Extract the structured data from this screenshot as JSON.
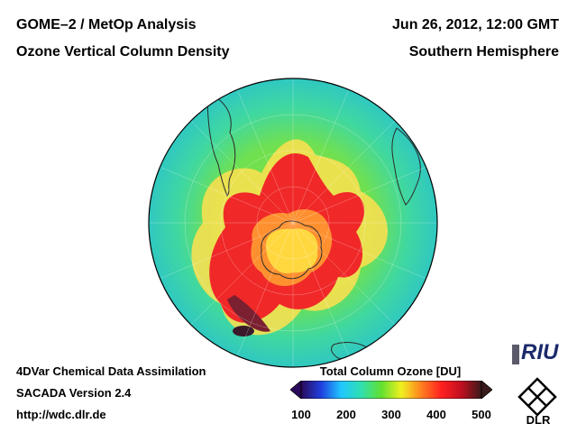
{
  "header": {
    "title_line1": "GOME–2 / MetOp Analysis",
    "title_line2": "Ozone Vertical Column Density",
    "date": "Jun 26, 2012, 12:00 GMT",
    "hemisphere": "Southern Hemisphere"
  },
  "footer": {
    "line1": "4DVar Chemical Data Assimilation",
    "line2": "SACADA Version 2.4",
    "line3": "http://wdc.dlr.de"
  },
  "colorbar": {
    "title": "Total Column Ozone [DU]",
    "ticks": [
      "100",
      "200",
      "300",
      "400",
      "500"
    ],
    "min": 100,
    "max": 500,
    "colors": [
      "#2a0a5a",
      "#2040e0",
      "#20c8ff",
      "#30e0b0",
      "#60e030",
      "#f0f020",
      "#ff8020",
      "#ff2020",
      "#c01020",
      "#3a1a1a"
    ]
  },
  "logos": {
    "riu": "RIU",
    "dlr": "DLR"
  },
  "map": {
    "projection": "orthographic south polar",
    "background_color": "#40d8a0"
  }
}
